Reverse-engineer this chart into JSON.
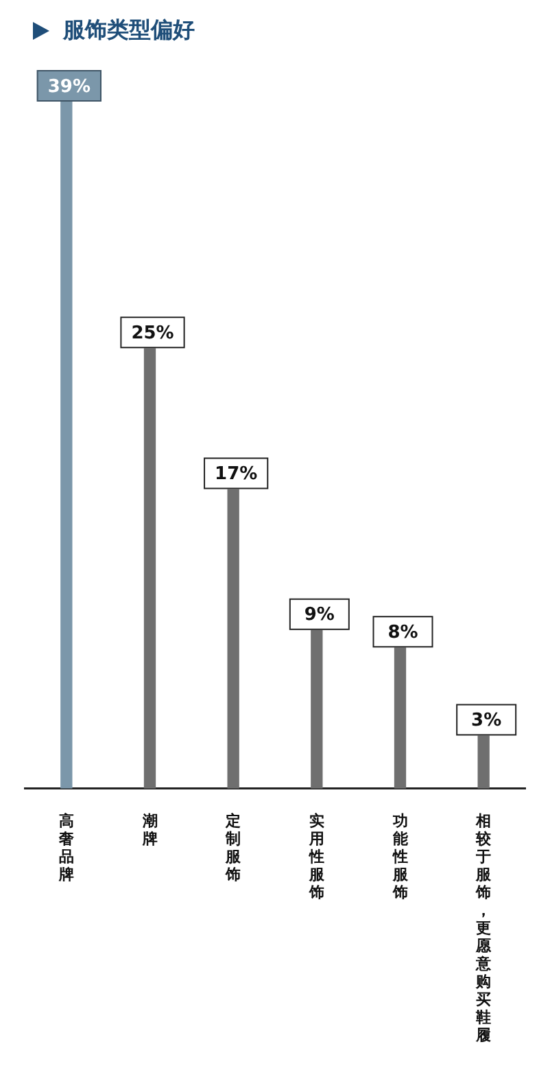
{
  "chart_data": {
    "type": "bar",
    "title": "服饰类型偏好",
    "categories": [
      "高奢品牌",
      "潮牌",
      "定制服饰",
      "实用性服饰",
      "功能性服饰",
      "相较于服饰，更愿意购买鞋履"
    ],
    "values": [
      39,
      25,
      17,
      9,
      8,
      3
    ],
    "value_labels": [
      "39%",
      "25%",
      "17%",
      "9%",
      "8%",
      "3%"
    ],
    "colors": [
      "#7b97aa",
      "#6f6f6f",
      "#6f6f6f",
      "#6f6f6f",
      "#6f6f6f",
      "#6f6f6f"
    ],
    "legend": false,
    "grid": false
  }
}
